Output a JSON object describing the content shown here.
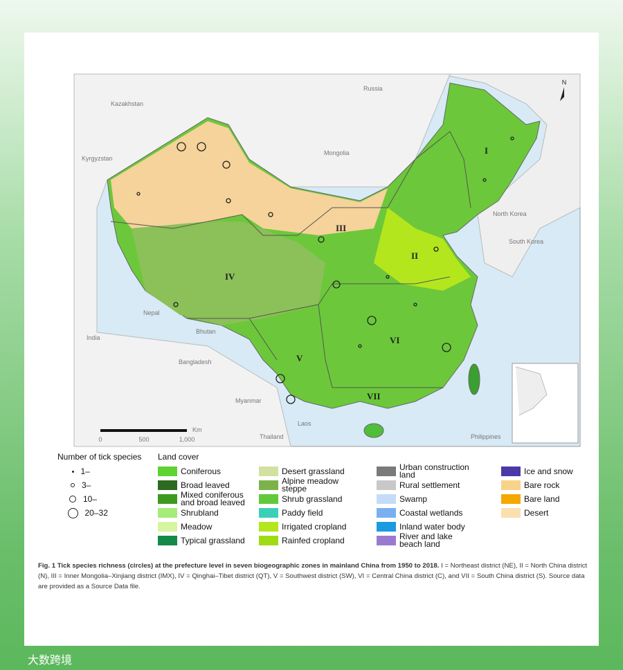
{
  "map": {
    "north": "N",
    "countries": [
      "Russia",
      "Kazakhstan",
      "Kyrgyzstan",
      "Mongolia",
      "North Korea",
      "South Korea",
      "Nepal",
      "Bhutan",
      "India",
      "Bangladesh",
      "Myanmar",
      "Laos",
      "Thailand",
      "Philippines"
    ],
    "zones": [
      "I",
      "II",
      "III",
      "IV",
      "V",
      "VI",
      "VII"
    ],
    "scale": {
      "unit": "Km",
      "ticks": [
        "0",
        "500",
        "1,000"
      ]
    }
  },
  "legend": {
    "richness": {
      "title": "Number of tick species",
      "items": [
        "1–",
        "3–",
        "10–",
        "20–32"
      ]
    },
    "land_cover": {
      "title": "Land cover",
      "items": [
        {
          "label": "Coniferous",
          "color": "#5fd32f"
        },
        {
          "label": "Broad leaved",
          "color": "#2d6a1f"
        },
        {
          "label": "Mixed coniferous and broad leaved",
          "color": "#3e9a1e"
        },
        {
          "label": "Shrubland",
          "color": "#a6ec7a"
        },
        {
          "label": "Meadow",
          "color": "#d6f5a0"
        },
        {
          "label": "Typical grassland",
          "color": "#138a4a"
        },
        {
          "label": "Desert grassland",
          "color": "#d2e0a0"
        },
        {
          "label": "Alpine meadow steppe",
          "color": "#7cb24a"
        },
        {
          "label": "Shrub grassland",
          "color": "#63c93c"
        },
        {
          "label": "Paddy field",
          "color": "#3ccfb8"
        },
        {
          "label": "Irrigated cropland",
          "color": "#b4e61e"
        },
        {
          "label": "Rainfed cropland",
          "color": "#a0dc14"
        },
        {
          "label": "Urban construction land",
          "color": "#7a7a7a"
        },
        {
          "label": "Rural settlement",
          "color": "#c8c8c8"
        },
        {
          "label": "Swamp",
          "color": "#c4dcf8"
        },
        {
          "label": "Coastal wetlands",
          "color": "#7ab0f0"
        },
        {
          "label": "Inland water body",
          "color": "#1a9ae0"
        },
        {
          "label": "River and lake beach land",
          "color": "#9a7ad0"
        },
        {
          "label": "Ice and snow",
          "color": "#4a3aa8"
        },
        {
          "label": "Bare rock",
          "color": "#f8d48a"
        },
        {
          "label": "Bare land",
          "color": "#f5a800"
        },
        {
          "label": "Desert",
          "color": "#fae0b0"
        }
      ]
    }
  },
  "caption": {
    "bold": "Fig. 1 Tick species richness (circles) at the prefecture level in seven biogeographic zones in mainland China from 1950 to 2018.",
    "text": "I = Northeast district (NE), II = North China district (N), III = Inner Mongolia–Xinjiang district (IMX), IV = Qinghai–Tibet district (QT), V = Southwest district (SW), VI = Central China district (C), and VII = South China district (S). Source data are provided as a Source Data file."
  },
  "watermark": "大数跨境"
}
